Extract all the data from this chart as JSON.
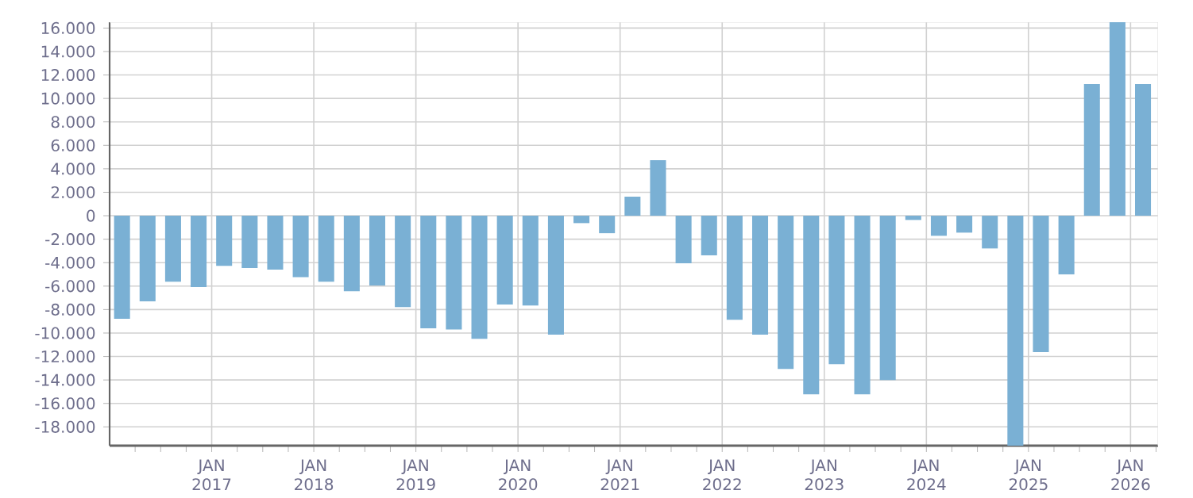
{
  "chart_data": {
    "type": "bar",
    "color": "#7ab0d4",
    "grid": true,
    "x": [
      "2016-02-15",
      "2016-05-15",
      "2016-08-15",
      "2016-11-15",
      "2017-02-15",
      "2017-05-15",
      "2017-08-15",
      "2017-11-15",
      "2018-02-15",
      "2018-05-15",
      "2018-08-15",
      "2018-11-15",
      "2019-02-15",
      "2019-05-15",
      "2019-08-15",
      "2019-11-15",
      "2020-02-15",
      "2020-05-15",
      "2020-08-15",
      "2020-11-15",
      "2021-02-15",
      "2021-05-15",
      "2021-08-15",
      "2021-11-15",
      "2022-02-15",
      "2022-05-15",
      "2022-08-15",
      "2022-11-15",
      "2023-02-15",
      "2023-05-15",
      "2023-08-15",
      "2023-11-15",
      "2024-02-15",
      "2024-05-15",
      "2024-08-15",
      "2024-11-15",
      "2025-02-15",
      "2025-05-15",
      "2025-08-15",
      "2025-11-15",
      "2026-02-15"
    ],
    "values": [
      -8780,
      -7300,
      -5630,
      -6080,
      -4280,
      -4460,
      -4600,
      -5230,
      -5630,
      -6440,
      -5950,
      -7790,
      -9600,
      -9690,
      -10500,
      -7570,
      -7660,
      -10140,
      -630,
      -1490,
      1620,
      4730,
      -4050,
      -3380,
      -8870,
      -10140,
      -13060,
      -15230,
      -12660,
      -15230,
      -14010,
      -360,
      -1710,
      -1440,
      -2790,
      -19600,
      -11620,
      -5000,
      11220,
      16500,
      11220
    ],
    "xlim": [
      "2016-01-01",
      "2026-04-08"
    ],
    "ylim": [
      -19600,
      16500
    ],
    "yticks": [
      {
        "value": -18000,
        "label": "-18.000"
      },
      {
        "value": -16000,
        "label": "-16.000"
      },
      {
        "value": -14000,
        "label": "-14.000"
      },
      {
        "value": -12000,
        "label": "-12.000"
      },
      {
        "value": -10000,
        "label": "-10.000"
      },
      {
        "value": -8000,
        "label": "-8.000"
      },
      {
        "value": -6000,
        "label": "-6.000"
      },
      {
        "value": -4000,
        "label": "-4.000"
      },
      {
        "value": -2000,
        "label": "-2.000"
      },
      0,
      {
        "value": 2000,
        "label": "2.000"
      },
      {
        "value": 4000,
        "label": "4.000"
      },
      {
        "value": 6000,
        "label": "6.000"
      },
      {
        "value": 8000,
        "label": "8.000"
      },
      {
        "value": 10000,
        "label": "10.000"
      },
      {
        "value": 12000,
        "label": "12.000"
      },
      {
        "value": 14000,
        "label": "14.000"
      },
      {
        "value": 16000,
        "label": "16.000"
      }
    ],
    "xticks": [
      {
        "value": "2016-04-01",
        "label": null
      },
      {
        "value": "2016-07-01",
        "label": null
      },
      {
        "value": "2016-10-01",
        "label": null
      },
      {
        "value": "2017-01-01",
        "label": "JAN 2017"
      },
      {
        "value": "2017-04-01",
        "label": null
      },
      {
        "value": "2017-07-01",
        "label": null
      },
      {
        "value": "2017-10-01",
        "label": null
      },
      {
        "value": "2018-01-01",
        "label": "JAN 2018"
      },
      {
        "value": "2018-04-01",
        "label": null
      },
      {
        "value": "2018-07-01",
        "label": null
      },
      {
        "value": "2018-10-01",
        "label": null
      },
      {
        "value": "2019-01-01",
        "label": "JAN 2019"
      },
      {
        "value": "2019-04-01",
        "label": null
      },
      {
        "value": "2019-07-01",
        "label": null
      },
      {
        "value": "2019-10-01",
        "label": null
      },
      {
        "value": "2020-01-01",
        "label": "JAN 2020"
      },
      {
        "value": "2020-04-01",
        "label": null
      },
      {
        "value": "2020-07-01",
        "label": null
      },
      {
        "value": "2020-10-01",
        "label": null
      },
      {
        "value": "2021-01-01",
        "label": "JAN 2021"
      },
      {
        "value": "2021-04-01",
        "label": null
      },
      {
        "value": "2021-07-01",
        "label": null
      },
      {
        "value": "2021-10-01",
        "label": null
      },
      {
        "value": "2022-01-01",
        "label": "JAN 2022"
      },
      {
        "value": "2022-04-01",
        "label": null
      },
      {
        "value": "2022-07-01",
        "label": null
      },
      {
        "value": "2022-10-01",
        "label": null
      },
      {
        "value": "2023-01-01",
        "label": "JAN 2023"
      },
      {
        "value": "2023-04-01",
        "label": null
      },
      {
        "value": "2023-07-01",
        "label": null
      },
      {
        "value": "2023-10-01",
        "label": null
      },
      {
        "value": "2024-01-01",
        "label": "JAN 2024"
      },
      {
        "value": "2024-04-01",
        "label": null
      },
      {
        "value": "2024-07-01",
        "label": null
      },
      {
        "value": "2024-10-01",
        "label": null
      },
      {
        "value": "2025-01-01",
        "label": "JAN 2025"
      },
      {
        "value": "2025-04-01",
        "label": null
      },
      {
        "value": "2025-07-01",
        "label": null
      },
      {
        "value": "2025-10-01",
        "label": null
      },
      {
        "value": "2026-01-01",
        "label": "JAN 2026"
      },
      {
        "value": "2026-04-01",
        "label": null
      }
    ]
  }
}
